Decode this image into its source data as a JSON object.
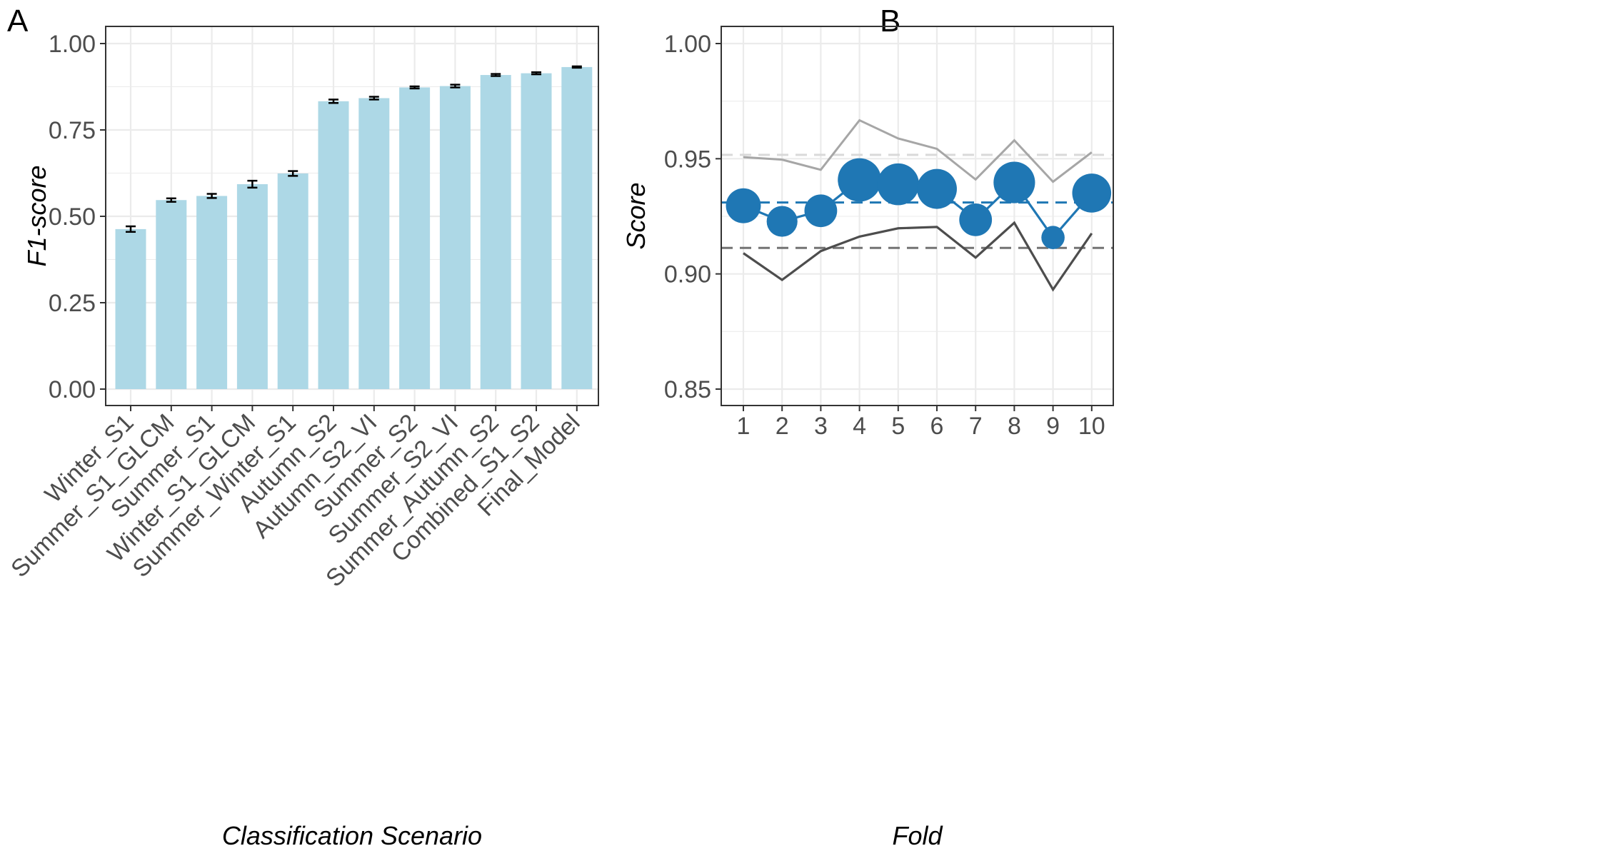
{
  "panels": {
    "a": {
      "tag": "A"
    },
    "b": {
      "tag": "B"
    }
  },
  "colors": {
    "bar_fill": "#add8e6",
    "point": "#1f77b4",
    "upper_line": "#a6a6a6",
    "upper_dash": "#d9d9d9",
    "lower_line": "#4d4d4d",
    "lower_dash": "#737373",
    "grid": "#ebebeb",
    "panel_border": "#333333"
  },
  "chart_data": [
    {
      "type": "bar",
      "panel": "A",
      "xlabel": "Classification Scenario",
      "ylabel": "F1-score",
      "ylim": [
        0,
        1
      ],
      "yticks": [
        "0.00",
        "0.25",
        "0.50",
        "0.75",
        "1.00"
      ],
      "categories": [
        "Winter_S1",
        "Summer_S1_GLCM",
        "Summer_S1",
        "Winter_S1_GLCM",
        "Summer_Winter_S1",
        "Autumn_S2",
        "Autumn_S2_VI",
        "Summer_S2",
        "Summer_S2_VI",
        "Summer_Autumn_S2",
        "Combined_S1_S2",
        "Final_Model"
      ],
      "values": [
        0.463,
        0.547,
        0.559,
        0.593,
        0.624,
        0.833,
        0.842,
        0.873,
        0.877,
        0.909,
        0.914,
        0.932
      ],
      "errors": [
        0.008,
        0.005,
        0.006,
        0.01,
        0.007,
        0.005,
        0.004,
        0.003,
        0.004,
        0.003,
        0.003,
        0.002
      ],
      "grid": true
    },
    {
      "type": "line",
      "panel": "B",
      "xlabel": "Fold",
      "ylabel": "Score",
      "ylim": [
        0.843,
        1.007
      ],
      "yticks": [
        "0.85",
        "0.90",
        "0.95",
        "1.00"
      ],
      "x": [
        1,
        2,
        3,
        4,
        5,
        6,
        7,
        8,
        9,
        10
      ],
      "series": [
        {
          "values": [
            0.9296,
            0.9228,
            0.9274,
            0.9408,
            0.9389,
            0.9369,
            0.9235,
            0.9397,
            0.9158,
            0.9351
          ],
          "point_size": [
            0.52,
            0.39,
            0.45,
            0.79,
            0.74,
            0.68,
            0.45,
            0.73,
            0.15,
            0.65
          ],
          "mean": 0.931
        },
        {
          "values": [
            0.9507,
            0.9496,
            0.9452,
            0.9667,
            0.9588,
            0.9543,
            0.941,
            0.958,
            0.94,
            0.9528
          ],
          "mean": 0.9517
        },
        {
          "values": [
            0.909,
            0.8974,
            0.9099,
            0.9162,
            0.9198,
            0.9204,
            0.9071,
            0.9222,
            0.8932,
            0.9176
          ],
          "mean": 0.9113
        }
      ],
      "grid": true
    }
  ]
}
